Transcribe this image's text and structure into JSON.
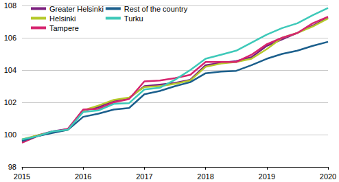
{
  "chart_data": {
    "type": "line",
    "x": [
      2015,
      2015.25,
      2015.5,
      2015.75,
      2016,
      2016.25,
      2016.5,
      2016.75,
      2017,
      2017.25,
      2017.5,
      2017.75,
      2018,
      2018.25,
      2018.5,
      2018.75,
      2019,
      2019.25,
      2019.5,
      2019.75,
      2020
    ],
    "xlim": [
      2015,
      2020
    ],
    "xticks": [
      2015,
      2016,
      2017,
      2018,
      2019,
      2020
    ],
    "ylim": [
      98,
      108
    ],
    "yticks": [
      98,
      100,
      102,
      104,
      106,
      108
    ],
    "grid": true,
    "legend": "top-left",
    "series": [
      {
        "name": "Greater Helsinki",
        "color": "#7b1f7e",
        "values": [
          99.65,
          99.95,
          100.2,
          100.35,
          101.5,
          101.7,
          102.1,
          102.25,
          103.0,
          103.1,
          103.2,
          103.4,
          104.3,
          104.45,
          104.55,
          104.8,
          105.5,
          105.9,
          106.3,
          106.75,
          107.25
        ]
      },
      {
        "name": "Helsinki",
        "color": "#b5c92b",
        "values": [
          99.7,
          99.95,
          100.15,
          100.3,
          101.5,
          101.8,
          102.15,
          102.3,
          102.95,
          103.0,
          103.15,
          103.35,
          104.2,
          104.4,
          104.5,
          104.7,
          105.3,
          106.0,
          106.3,
          106.7,
          107.2
        ]
      },
      {
        "name": "Tampere",
        "color": "#d6246e",
        "values": [
          99.5,
          99.9,
          100.15,
          100.35,
          101.55,
          101.6,
          102.0,
          102.2,
          103.3,
          103.35,
          103.5,
          103.7,
          104.5,
          104.5,
          104.5,
          104.95,
          105.6,
          106.0,
          106.3,
          106.9,
          107.3
        ]
      },
      {
        "name": "Rest of the country",
        "color": "#1b5f8c",
        "values": [
          99.6,
          99.9,
          100.1,
          100.3,
          101.1,
          101.3,
          101.55,
          101.65,
          102.5,
          102.7,
          103.0,
          103.25,
          103.8,
          103.9,
          103.95,
          104.3,
          104.7,
          105.0,
          105.2,
          105.5,
          105.75
        ]
      },
      {
        "name": "Turku",
        "color": "#3ec9b9",
        "values": [
          99.7,
          99.9,
          100.2,
          100.3,
          101.4,
          101.5,
          101.9,
          101.95,
          102.8,
          102.9,
          103.4,
          104.0,
          104.7,
          104.95,
          105.2,
          105.7,
          106.2,
          106.6,
          106.9,
          107.4,
          107.85
        ]
      }
    ]
  }
}
